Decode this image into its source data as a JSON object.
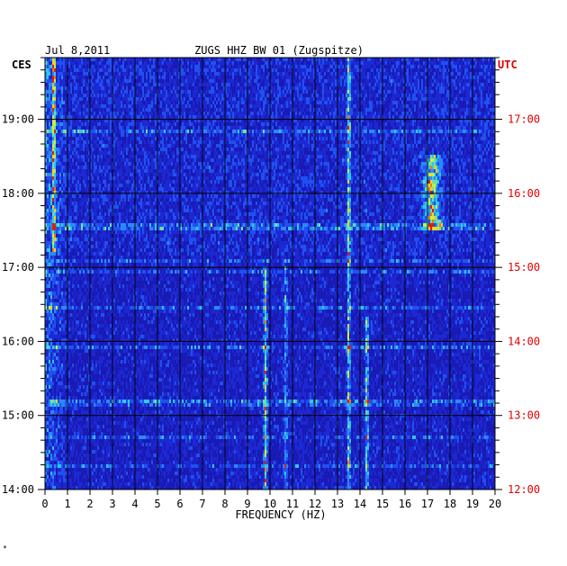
{
  "header": {
    "date": "Jul 8,2011",
    "station": "ZUGS HHZ BW 01 (Zugspitze)",
    "left_tz": "CES",
    "right_tz": "UTC"
  },
  "footer": {
    "mark": "*"
  },
  "colors": {
    "background_blue": "#1a1ab4",
    "grid": "#000000",
    "utc_label": "#e00000"
  },
  "chart_data": {
    "type": "heatmap",
    "title": "ZUGS HHZ BW 01 (Zugspitze)",
    "xlabel": "FREQUENCY (HZ)",
    "ylabel": "",
    "xlim": [
      0,
      20
    ],
    "x_ticks": [
      "0",
      "1",
      "2",
      "3",
      "4",
      "5",
      "6",
      "7",
      "8",
      "9",
      "10",
      "11",
      "12",
      "13",
      "14",
      "15",
      "16",
      "17",
      "18",
      "19",
      "20"
    ],
    "y_left_ticks": [
      "19:00",
      "18:00",
      "17:00",
      "16:00",
      "15:00",
      "14:00"
    ],
    "y_right_ticks": [
      "17:00",
      "16:00",
      "15:00",
      "14:00",
      "13:00",
      "12:00"
    ],
    "time_range_ces": [
      "14:00",
      "19:50"
    ],
    "features": [
      {
        "freq_hz": 9.8,
        "from": "14:00",
        "to": "17:00",
        "level": "strong"
      },
      {
        "freq_hz": 10.7,
        "from": "14:00",
        "to": "17:00",
        "level": "medium"
      },
      {
        "freq_hz": 13.5,
        "from": "14:00",
        "to": "19:50",
        "level": "strong"
      },
      {
        "freq_hz": 14.3,
        "from": "14:00",
        "to": "16:20",
        "level": "strong"
      },
      {
        "freq_hz": 0.4,
        "from": "17:10",
        "to": "19:50",
        "level": "strong"
      },
      {
        "freq_hz": 17.2,
        "from": "17:30",
        "to": "18:30",
        "level": "strong"
      }
    ]
  }
}
